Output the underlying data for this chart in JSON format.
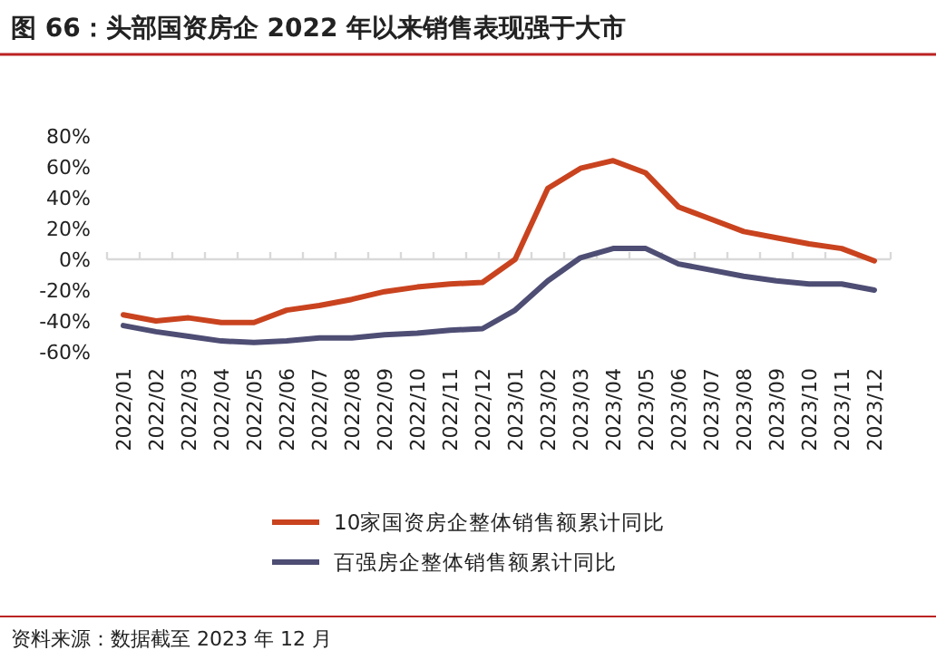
{
  "chart_data": {
    "type": "line",
    "title": "图 66：头部国资房企 2022 年以来销售表现强于大市",
    "categories": [
      "2022/01",
      "2022/02",
      "2022/03",
      "2022/04",
      "2022/05",
      "2022/06",
      "2022/07",
      "2022/08",
      "2022/09",
      "2022/10",
      "2022/11",
      "2022/12",
      "2023/01",
      "2023/02",
      "2023/03",
      "2023/04",
      "2023/05",
      "2023/06",
      "2023/07",
      "2023/08",
      "2023/09",
      "2023/10",
      "2023/11",
      "2023/12"
    ],
    "series": [
      {
        "name": "10家国资房企整体销售额累计同比",
        "color": "#c9431f",
        "values": [
          -36,
          -40,
          -38,
          -41,
          -41,
          -33,
          -30,
          -26,
          -21,
          -18,
          -16,
          -15,
          0,
          46,
          59,
          64,
          56,
          34,
          26,
          18,
          14,
          10,
          7,
          -1
        ]
      },
      {
        "name": "百强房企整体销售额累计同比",
        "color": "#4e4d74",
        "values": [
          -43,
          -47,
          -50,
          -53,
          -54,
          -53,
          -51,
          -51,
          -49,
          -48,
          -46,
          -45,
          -33,
          -14,
          1,
          7,
          7,
          -3,
          -7,
          -11,
          -14,
          -16,
          -16,
          -20
        ]
      }
    ],
    "ylim": [
      -60,
      80
    ],
    "yticks": [
      {
        "value": -60,
        "label": "-60%"
      },
      {
        "value": -40,
        "label": "-40%"
      },
      {
        "value": -20,
        "label": "-20%"
      },
      {
        "value": 0,
        "label": "0%"
      },
      {
        "value": 20,
        "label": "20%"
      },
      {
        "value": 40,
        "label": "40%"
      },
      {
        "value": 60,
        "label": "60%"
      },
      {
        "value": 80,
        "label": "80%"
      }
    ],
    "legend": "bottom",
    "marker": "none",
    "line_style": "solid",
    "annotations": [
      "资料来源：数据截至 2023 年 12 月"
    ]
  }
}
